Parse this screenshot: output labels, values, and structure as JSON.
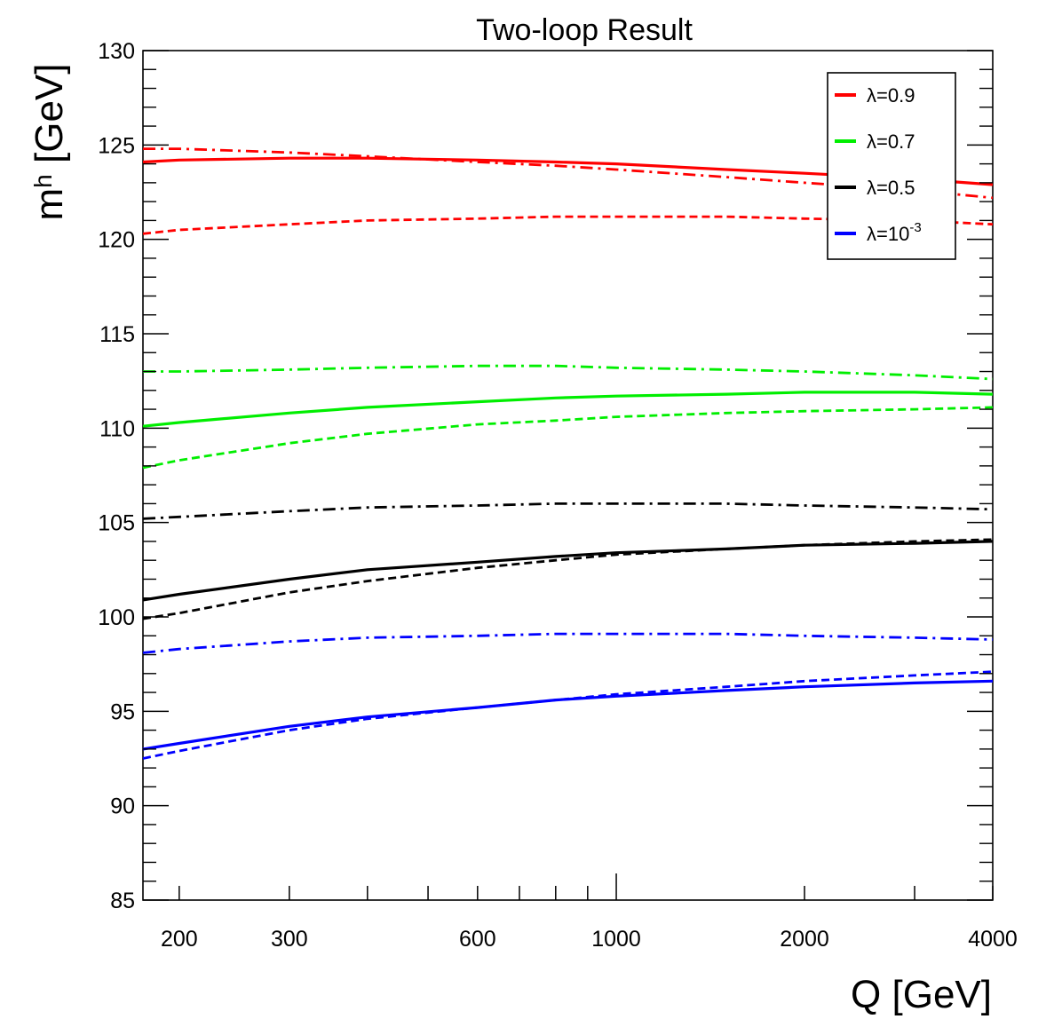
{
  "chart_data": {
    "type": "line",
    "title": "Two-loop Result",
    "xlabel": "Q [GeV]",
    "ylabel": "m_h [GeV]",
    "ylabel_main": "m",
    "ylabel_sub": "h",
    "ylabel_rest": " [GeV]",
    "xscale": "log",
    "xlim": [
      175,
      4000
    ],
    "ylim": [
      85,
      130
    ],
    "grid": false,
    "legend_position": "top-right",
    "x_tick_labels": [
      "200",
      "300",
      "600",
      "1000",
      "2000",
      "4000"
    ],
    "x_ticks": [
      200,
      300,
      600,
      1000,
      2000,
      4000
    ],
    "y_ticks": [
      85,
      90,
      95,
      100,
      105,
      110,
      115,
      120,
      125,
      130
    ],
    "y_tick_labels": [
      "85",
      "90",
      "95",
      "100",
      "105",
      "110",
      "115",
      "120",
      "125",
      "130"
    ],
    "legend": [
      {
        "text": "λ=0.9",
        "color": "#ff0000",
        "base": "λ=0.9",
        "sup": ""
      },
      {
        "text": "λ=0.7",
        "color": "#00ee00",
        "base": "λ=0.7",
        "sup": ""
      },
      {
        "text": "λ=0.5",
        "color": "#000000",
        "base": "λ=0.5",
        "sup": ""
      },
      {
        "text": "λ=10-3",
        "color": "#0000ff",
        "base": "λ=10",
        "sup": "-3"
      }
    ],
    "x": [
      175,
      200,
      300,
      400,
      600,
      800,
      1000,
      1500,
      2000,
      3000,
      4000
    ],
    "series": [
      {
        "name": "λ=0.9 solid",
        "color": "#ff0000",
        "style": "solid",
        "values": [
          124.1,
          124.2,
          124.3,
          124.3,
          124.2,
          124.1,
          124.0,
          123.7,
          123.5,
          123.2,
          122.9
        ]
      },
      {
        "name": "λ=0.9 dash-dot",
        "color": "#ff0000",
        "style": "dashdot",
        "values": [
          124.8,
          124.8,
          124.6,
          124.4,
          124.1,
          123.9,
          123.7,
          123.3,
          123.0,
          122.6,
          122.2
        ]
      },
      {
        "name": "λ=0.9 dashed",
        "color": "#ff0000",
        "style": "dashed",
        "values": [
          120.3,
          120.5,
          120.8,
          121.0,
          121.1,
          121.2,
          121.2,
          121.2,
          121.1,
          121.0,
          120.8
        ]
      },
      {
        "name": "λ=0.7 dash-dot",
        "color": "#00ee00",
        "style": "dashdot",
        "values": [
          113.0,
          113.0,
          113.1,
          113.2,
          113.3,
          113.3,
          113.2,
          113.1,
          113.0,
          112.8,
          112.6
        ]
      },
      {
        "name": "λ=0.7 solid",
        "color": "#00ee00",
        "style": "solid",
        "values": [
          110.1,
          110.3,
          110.8,
          111.1,
          111.4,
          111.6,
          111.7,
          111.8,
          111.9,
          111.9,
          111.8
        ]
      },
      {
        "name": "λ=0.7 dashed",
        "color": "#00ee00",
        "style": "dashed",
        "values": [
          107.9,
          108.3,
          109.2,
          109.7,
          110.2,
          110.4,
          110.6,
          110.8,
          110.9,
          111.0,
          111.1
        ]
      },
      {
        "name": "λ=0.5 dash-dot",
        "color": "#000000",
        "style": "dashdot",
        "values": [
          105.2,
          105.3,
          105.6,
          105.8,
          105.9,
          106.0,
          106.0,
          106.0,
          105.9,
          105.8,
          105.7
        ]
      },
      {
        "name": "λ=0.5 solid",
        "color": "#000000",
        "style": "solid",
        "values": [
          100.9,
          101.2,
          102.0,
          102.5,
          102.9,
          103.2,
          103.4,
          103.6,
          103.8,
          103.9,
          104.0
        ]
      },
      {
        "name": "λ=0.5 dashed",
        "color": "#000000",
        "style": "dashed",
        "values": [
          99.9,
          100.2,
          101.3,
          101.9,
          102.6,
          103.0,
          103.3,
          103.6,
          103.8,
          104.0,
          104.1
        ]
      },
      {
        "name": "λ=10-3 dash-dot",
        "color": "#0000ff",
        "style": "dashdot",
        "values": [
          98.1,
          98.3,
          98.7,
          98.9,
          99.0,
          99.1,
          99.1,
          99.1,
          99.0,
          98.9,
          98.8
        ]
      },
      {
        "name": "λ=10-3 solid",
        "color": "#0000ff",
        "style": "solid",
        "values": [
          93.0,
          93.3,
          94.2,
          94.7,
          95.2,
          95.6,
          95.8,
          96.1,
          96.3,
          96.5,
          96.6
        ]
      },
      {
        "name": "λ=10-3 dashed",
        "color": "#0000ff",
        "style": "dashed",
        "values": [
          92.5,
          92.9,
          94.0,
          94.6,
          95.2,
          95.6,
          95.9,
          96.3,
          96.6,
          96.9,
          97.1
        ]
      }
    ]
  }
}
